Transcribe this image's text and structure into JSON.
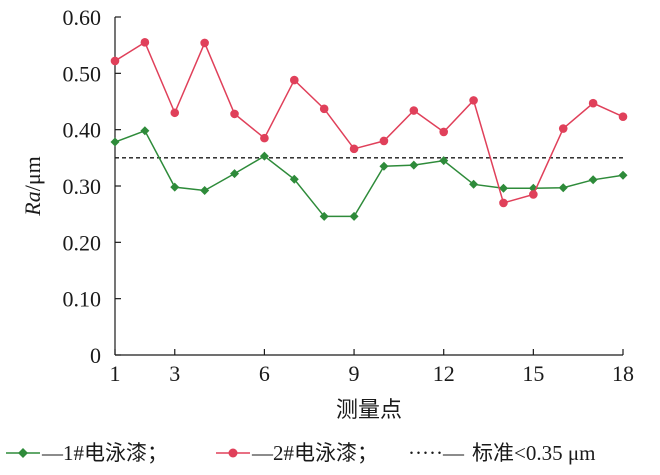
{
  "chart_data": {
    "type": "line",
    "x": [
      1,
      2,
      3,
      4,
      5,
      6,
      7,
      8,
      9,
      10,
      11,
      12,
      13,
      14,
      15,
      16,
      17,
      18
    ],
    "x_ticks": [
      "1",
      "3",
      "6",
      "9",
      "12",
      "15",
      "18"
    ],
    "x_tick_values": [
      1,
      3,
      6,
      9,
      12,
      15,
      18
    ],
    "xlim": [
      1,
      18
    ],
    "y_ticks": [
      "0",
      "0.10",
      "0.20",
      "0.30",
      "0.40",
      "0.50",
      "0.60"
    ],
    "y_tick_values": [
      0,
      0.1,
      0.2,
      0.3,
      0.4,
      0.5,
      0.6
    ],
    "ylim": [
      0,
      0.6
    ],
    "xlabel": "测量点",
    "ylabel_italic": "Ra",
    "ylabel_unit": "/μm",
    "series": [
      {
        "name": "—1#电泳漆；",
        "color": "#2e8b3a",
        "marker": "diamond",
        "values": [
          0.378,
          0.398,
          0.298,
          0.292,
          0.322,
          0.353,
          0.312,
          0.246,
          0.246,
          0.335,
          0.337,
          0.345,
          0.303,
          0.296,
          0.296,
          0.297,
          0.311,
          0.319
        ]
      },
      {
        "name": "—2#电泳漆；",
        "color": "#e0405a",
        "marker": "circle",
        "values": [
          0.522,
          0.555,
          0.43,
          0.554,
          0.428,
          0.385,
          0.488,
          0.437,
          0.366,
          0.38,
          0.434,
          0.396,
          0.452,
          0.27,
          0.285,
          0.402,
          0.447,
          0.423
        ]
      }
    ],
    "reference_line": {
      "value": 0.35,
      "label": "标准<0.35 μm",
      "style": "dashed"
    },
    "legend_prefix_dashes": "·····—",
    "grid": false,
    "legend_position": "bottom"
  }
}
